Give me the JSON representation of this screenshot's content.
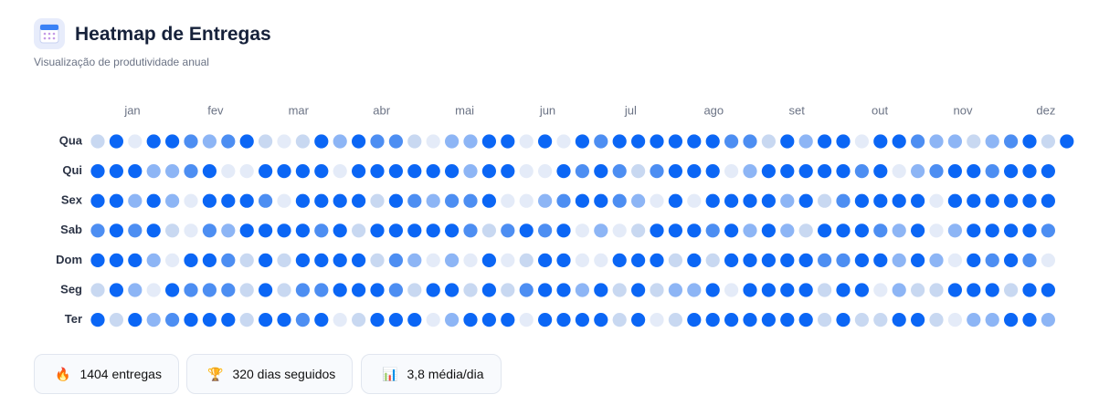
{
  "header": {
    "title": "Heatmap de Entregas",
    "subtitle": "Visualização de produtividade anual"
  },
  "heatmap": {
    "months": [
      "jan",
      "fev",
      "mar",
      "abr",
      "mai",
      "jun",
      "jul",
      "ago",
      "set",
      "out",
      "nov",
      "dez"
    ],
    "colors": [
      "#e4ebf8",
      "#c8d8f1",
      "#8db5f5",
      "#4d8ef2",
      "#0b66f5"
    ],
    "rows": [
      {
        "label": "Qua",
        "values": [
          1,
          4,
          0,
          4,
          4,
          3,
          2,
          3,
          4,
          1,
          0,
          1,
          4,
          2,
          4,
          3,
          3,
          1,
          0,
          2,
          2,
          4,
          4,
          0,
          4,
          0,
          4,
          3,
          4,
          4,
          4,
          4,
          4,
          4,
          3,
          3,
          1,
          4,
          2,
          4,
          4,
          0,
          4,
          4,
          3,
          2,
          2,
          1,
          2,
          3,
          4,
          1,
          4
        ]
      },
      {
        "label": "Qui",
        "values": [
          4,
          4,
          4,
          2,
          2,
          3,
          4,
          0,
          0,
          4,
          4,
          4,
          4,
          0,
          4,
          4,
          4,
          4,
          4,
          4,
          2,
          4,
          4,
          0,
          0,
          4,
          3,
          4,
          3,
          1,
          3,
          4,
          4,
          4,
          0,
          2,
          4,
          4,
          4,
          4,
          4,
          3,
          4,
          0,
          2,
          3,
          4,
          4,
          3,
          4,
          4,
          4
        ]
      },
      {
        "label": "Sex",
        "values": [
          4,
          4,
          2,
          4,
          2,
          0,
          4,
          4,
          4,
          3,
          0,
          4,
          4,
          4,
          4,
          1,
          4,
          3,
          2,
          3,
          3,
          4,
          0,
          0,
          2,
          3,
          4,
          4,
          3,
          2,
          0,
          4,
          0,
          4,
          4,
          4,
          4,
          2,
          4,
          1,
          3,
          4,
          4,
          4,
          4,
          0,
          4,
          4,
          4,
          4,
          4,
          4
        ]
      },
      {
        "label": "Sab",
        "values": [
          3,
          4,
          3,
          4,
          1,
          0,
          3,
          2,
          4,
          4,
          4,
          4,
          3,
          4,
          1,
          4,
          4,
          4,
          4,
          4,
          3,
          1,
          3,
          4,
          3,
          4,
          0,
          2,
          0,
          1,
          4,
          4,
          4,
          3,
          4,
          2,
          4,
          2,
          1,
          4,
          4,
          4,
          3,
          2,
          4,
          0,
          2,
          4,
          4,
          4,
          4,
          3
        ]
      },
      {
        "label": "Dom",
        "values": [
          4,
          4,
          4,
          2,
          0,
          4,
          4,
          3,
          1,
          4,
          1,
          4,
          4,
          4,
          4,
          1,
          3,
          2,
          0,
          2,
          0,
          4,
          0,
          1,
          4,
          4,
          0,
          0,
          4,
          4,
          4,
          1,
          4,
          1,
          4,
          4,
          4,
          4,
          4,
          3,
          3,
          4,
          4,
          2,
          4,
          2,
          0,
          4,
          3,
          4,
          3,
          0
        ]
      },
      {
        "label": "Seg",
        "values": [
          1,
          4,
          2,
          0,
          4,
          3,
          3,
          3,
          1,
          4,
          1,
          3,
          3,
          4,
          4,
          4,
          3,
          1,
          4,
          4,
          1,
          4,
          1,
          3,
          4,
          4,
          2,
          4,
          1,
          4,
          1,
          2,
          2,
          4,
          0,
          4,
          4,
          4,
          4,
          1,
          4,
          4,
          0,
          2,
          1,
          1,
          4,
          4,
          4,
          1,
          4,
          4
        ]
      },
      {
        "label": "Ter",
        "values": [
          4,
          1,
          4,
          2,
          3,
          4,
          4,
          4,
          1,
          4,
          4,
          3,
          4,
          0,
          1,
          4,
          4,
          4,
          0,
          2,
          4,
          4,
          4,
          0,
          4,
          4,
          4,
          4,
          1,
          4,
          0,
          1,
          4,
          4,
          4,
          4,
          4,
          4,
          4,
          1,
          4,
          1,
          1,
          4,
          4,
          1,
          0,
          2,
          2,
          4,
          4,
          2
        ]
      }
    ]
  },
  "stats": [
    {
      "icon": "🔥",
      "text": "1404 entregas"
    },
    {
      "icon": "🏆",
      "text": "320 dias seguidos"
    },
    {
      "icon": "📊",
      "text": "3,8 média/dia"
    }
  ]
}
